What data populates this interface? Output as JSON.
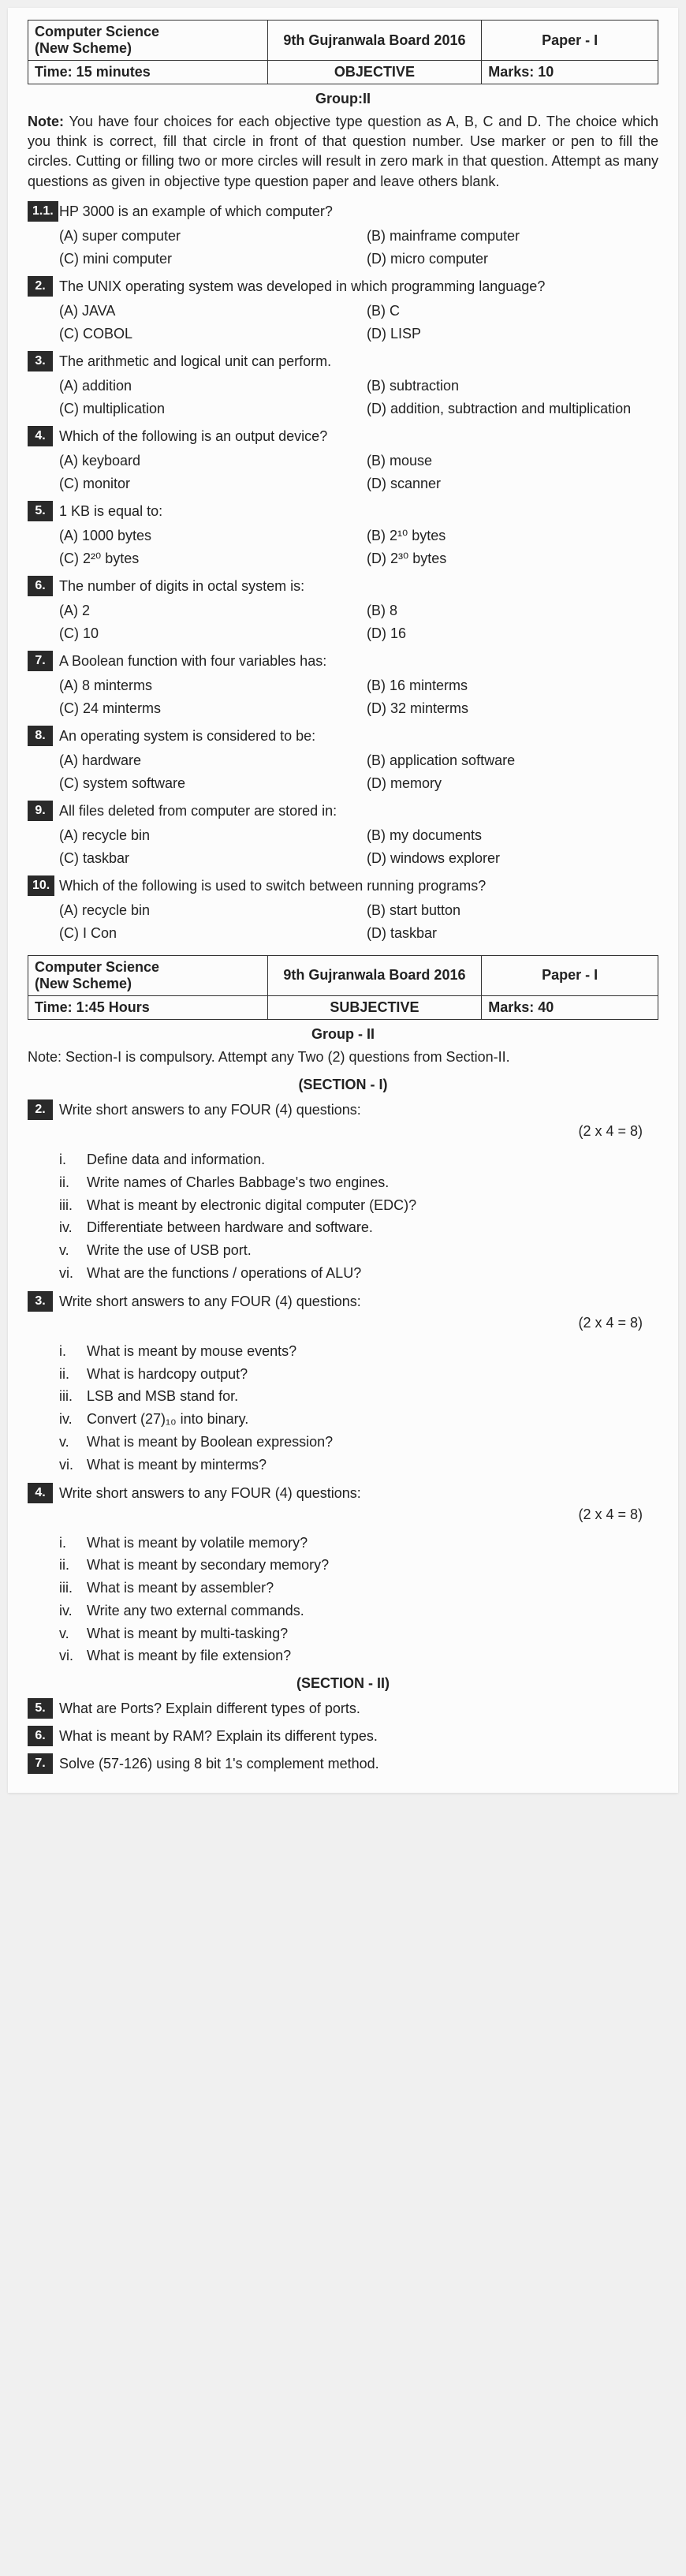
{
  "header1": {
    "subject": "Computer Science",
    "scheme": "(New Scheme)",
    "board": "9th Gujranwala Board 2016",
    "paper": "Paper - I",
    "time": "Time: 15 minutes",
    "type": "OBJECTIVE",
    "marks": "Marks: 10"
  },
  "group1": "Group:II",
  "note1": "You have four choices for each objective type question as A, B, C and D. The choice which you think is correct, fill that circle in front of that question number. Use marker or pen to fill the circles. Cutting or filling two or more circles will result in zero mark in that question. Attempt as many questions as given in objective type question paper and leave others blank.",
  "questions": [
    {
      "num": "1.1.",
      "text": "HP 3000 is an example of which computer?",
      "opts": [
        "(A)  super computer",
        "(B)  mainframe computer",
        "(C)  mini computer",
        "(D)  micro computer"
      ]
    },
    {
      "num": "2.",
      "text": "The UNIX operating system was developed in which programming language?",
      "opts": [
        "(A)  JAVA",
        "(B)  C",
        "(C)  COBOL",
        "(D)  LISP"
      ]
    },
    {
      "num": "3.",
      "text": "The arithmetic and logical unit can perform.",
      "opts": [
        "(A)  addition",
        "(B)  subtraction",
        "(C)  multiplication",
        "(D)  addition, subtraction and multiplication"
      ]
    },
    {
      "num": "4.",
      "text": "Which of the following is an output device?",
      "opts": [
        "(A)  keyboard",
        "(B)  mouse",
        "(C)  monitor",
        "(D)  scanner"
      ]
    },
    {
      "num": "5.",
      "text": "1 KB is equal to:",
      "opts": [
        "(A)  1000 bytes",
        "(B)  2¹⁰ bytes",
        "(C)  2²⁰ bytes",
        "(D)  2³⁰ bytes"
      ]
    },
    {
      "num": "6.",
      "text": "The number of digits in octal system is:",
      "opts": [
        "(A)  2",
        "(B)  8",
        "(C)  10",
        "(D)  16"
      ]
    },
    {
      "num": "7.",
      "text": "A Boolean function with four variables has:",
      "opts": [
        "(A)  8 minterms",
        "(B)  16 minterms",
        "(C)  24 minterms",
        "(D)  32 minterms"
      ]
    },
    {
      "num": "8.",
      "text": "An operating system is considered to be:",
      "opts": [
        "(A)  hardware",
        "(B)  application software",
        "(C)  system software",
        "(D)  memory"
      ]
    },
    {
      "num": "9.",
      "text": "All files deleted from computer are stored in:",
      "opts": [
        "(A)  recycle bin",
        "(B)  my documents",
        "(C)  taskbar",
        "(D)  windows explorer"
      ]
    },
    {
      "num": "10.",
      "text": "Which of the following is used to switch between running programs?",
      "opts": [
        "(A)  recycle bin",
        "(B)  start button",
        "(C)  I Con",
        "(D)  taskbar"
      ]
    }
  ],
  "header2": {
    "subject": "Computer Science",
    "scheme": "(New Scheme)",
    "board": "9th Gujranwala Board 2016",
    "paper": "Paper - I",
    "time": "Time: 1:45 Hours",
    "type": "SUBJECTIVE",
    "marks": "Marks: 40"
  },
  "group2": "Group - II",
  "note2": "Section-I is compulsory. Attempt any Two (2) questions from Section-II.",
  "sectionI": "(SECTION - I)",
  "shortQ": [
    {
      "num": "2.",
      "text": "Write short answers to any FOUR (4) questions:",
      "marks": "(2 x 4 = 8)",
      "items": [
        [
          "i.",
          "Define data and information."
        ],
        [
          "ii.",
          "Write names of Charles Babbage's two engines."
        ],
        [
          "iii.",
          "What is meant by electronic digital computer (EDC)?"
        ],
        [
          "iv.",
          "Differentiate between hardware and software."
        ],
        [
          "v.",
          "Write the use of USB port."
        ],
        [
          "vi.",
          "What are the functions / operations of ALU?"
        ]
      ]
    },
    {
      "num": "3.",
      "text": "Write short answers to any FOUR (4) questions:",
      "marks": "(2 x 4 = 8)",
      "items": [
        [
          "i.",
          "What is meant by mouse events?"
        ],
        [
          "ii.",
          "What is hardcopy output?"
        ],
        [
          "iii.",
          "LSB and MSB stand for."
        ],
        [
          "iv.",
          "Convert (27)₁₀ into binary."
        ],
        [
          "v.",
          "What is meant by Boolean expression?"
        ],
        [
          "vi.",
          "What is meant by minterms?"
        ]
      ]
    },
    {
      "num": "4.",
      "text": "Write short answers to any FOUR (4) questions:",
      "marks": "(2 x 4 = 8)",
      "items": [
        [
          "i.",
          "What is meant by volatile memory?"
        ],
        [
          "ii.",
          "What is meant by secondary memory?"
        ],
        [
          "iii.",
          "What is meant by assembler?"
        ],
        [
          "iv.",
          "Write any two external commands."
        ],
        [
          "v.",
          "What is meant by multi-tasking?"
        ],
        [
          "vi.",
          "What is meant by file extension?"
        ]
      ]
    }
  ],
  "sectionII": "(SECTION - II)",
  "longQ": [
    {
      "num": "5.",
      "text": "What are Ports? Explain different types of ports."
    },
    {
      "num": "6.",
      "text": "What is meant by RAM? Explain its different types."
    },
    {
      "num": "7.",
      "text": "Solve (57-126) using 8 bit 1's complement method."
    }
  ]
}
